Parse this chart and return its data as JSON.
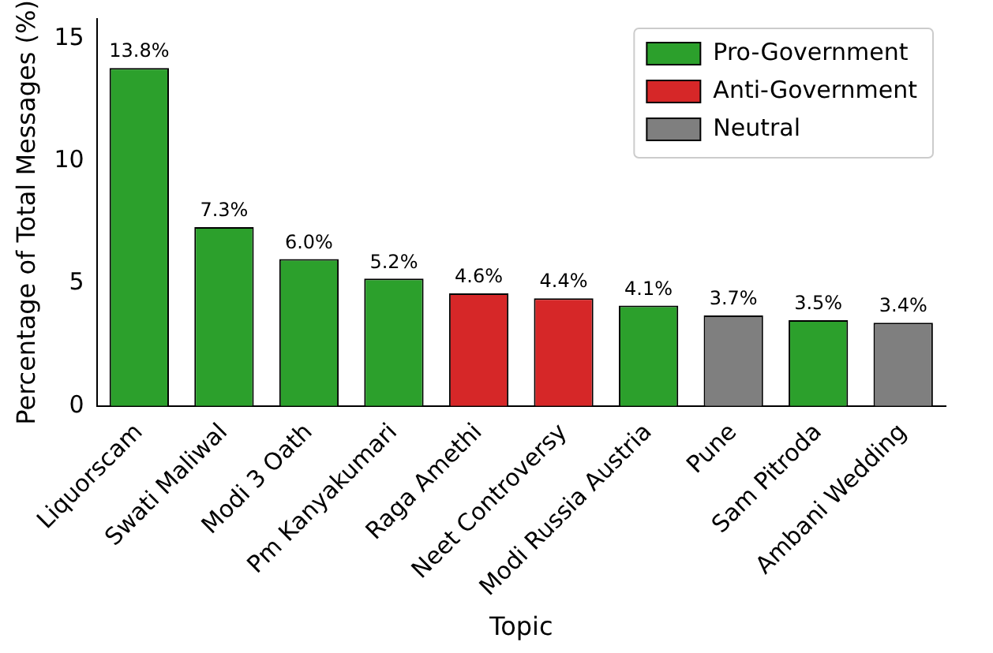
{
  "chart_data": {
    "type": "bar",
    "xlabel": "Topic",
    "ylabel": "Percentage of Total Messages (%)",
    "categories": [
      "Liquorscam",
      "Swati Maliwal",
      "Modi 3 Oath",
      "Pm Kanyakumari",
      "Raga Amethi",
      "Neet Controversy",
      "Modi Russia Austria",
      "Pune",
      "Sam Pitroda",
      "Ambani Wedding"
    ],
    "series": [
      {
        "name": "Pro-Government",
        "color": "#2ca02c",
        "values": [
          13.8,
          7.3,
          6.0,
          5.2,
          null,
          null,
          4.1,
          null,
          3.5,
          null
        ],
        "value_labels": [
          "13.8%",
          "7.3%",
          "6.0%",
          "5.2%",
          null,
          null,
          "4.1%",
          null,
          "3.5%",
          null
        ]
      },
      {
        "name": "Anti-Government",
        "color": "#d62728",
        "values": [
          null,
          null,
          null,
          null,
          4.6,
          4.4,
          null,
          null,
          null,
          null
        ],
        "value_labels": [
          null,
          null,
          null,
          null,
          "4.6%",
          "4.4%",
          null,
          null,
          null,
          null
        ]
      },
      {
        "name": "Neutral",
        "color": "#7f7f7f",
        "values": [
          null,
          null,
          null,
          null,
          null,
          null,
          null,
          3.7,
          null,
          3.4
        ],
        "value_labels": [
          null,
          null,
          null,
          null,
          null,
          null,
          null,
          "3.7%",
          null,
          "3.4%"
        ]
      }
    ],
    "ylim": [
      0,
      15.8
    ],
    "yticks": [
      0,
      5,
      10,
      15
    ],
    "grid": false,
    "legend": "top right"
  }
}
